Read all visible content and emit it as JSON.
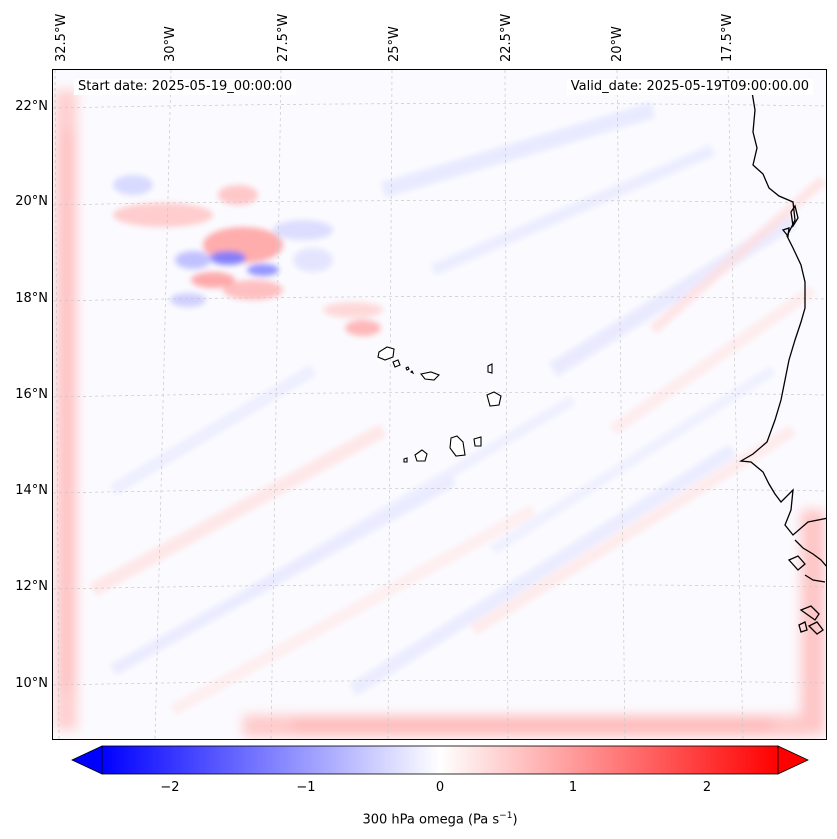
{
  "header": {
    "start_date": "Start date: 2025-05-19_00:00:00",
    "valid_date": "Valid_date: 2025-05-19T09:00:00.00"
  },
  "axes": {
    "lat_labels": [
      "22°N",
      "20°N",
      "18°N",
      "16°N",
      "14°N",
      "12°N",
      "10°N"
    ],
    "lon_labels": [
      "32.5°W",
      "30°W",
      "27.5°W",
      "25°W",
      "22.5°W",
      "20°W",
      "17.5°W"
    ]
  },
  "map": {
    "variable": "300 hPa omega",
    "region": "Eastern tropical Atlantic / Cabo Verde",
    "extent_deg": {
      "lon_min": -32.6,
      "lon_max": -15.0,
      "lat_min": 8.9,
      "lat_max": 22.8
    }
  },
  "colorbar": {
    "min": -2.6,
    "max": 2.6,
    "ticks": [
      "−2",
      "−1",
      "0",
      "1",
      "2"
    ],
    "tick_values": [
      -2,
      -1,
      0,
      1,
      2
    ],
    "label_prefix": "300 hPa omega (Pa s",
    "label_exponent": "−1",
    "label_suffix": ")",
    "color_low": "#0000ff",
    "color_mid": "#ffffff",
    "color_high": "#ff0000"
  }
}
